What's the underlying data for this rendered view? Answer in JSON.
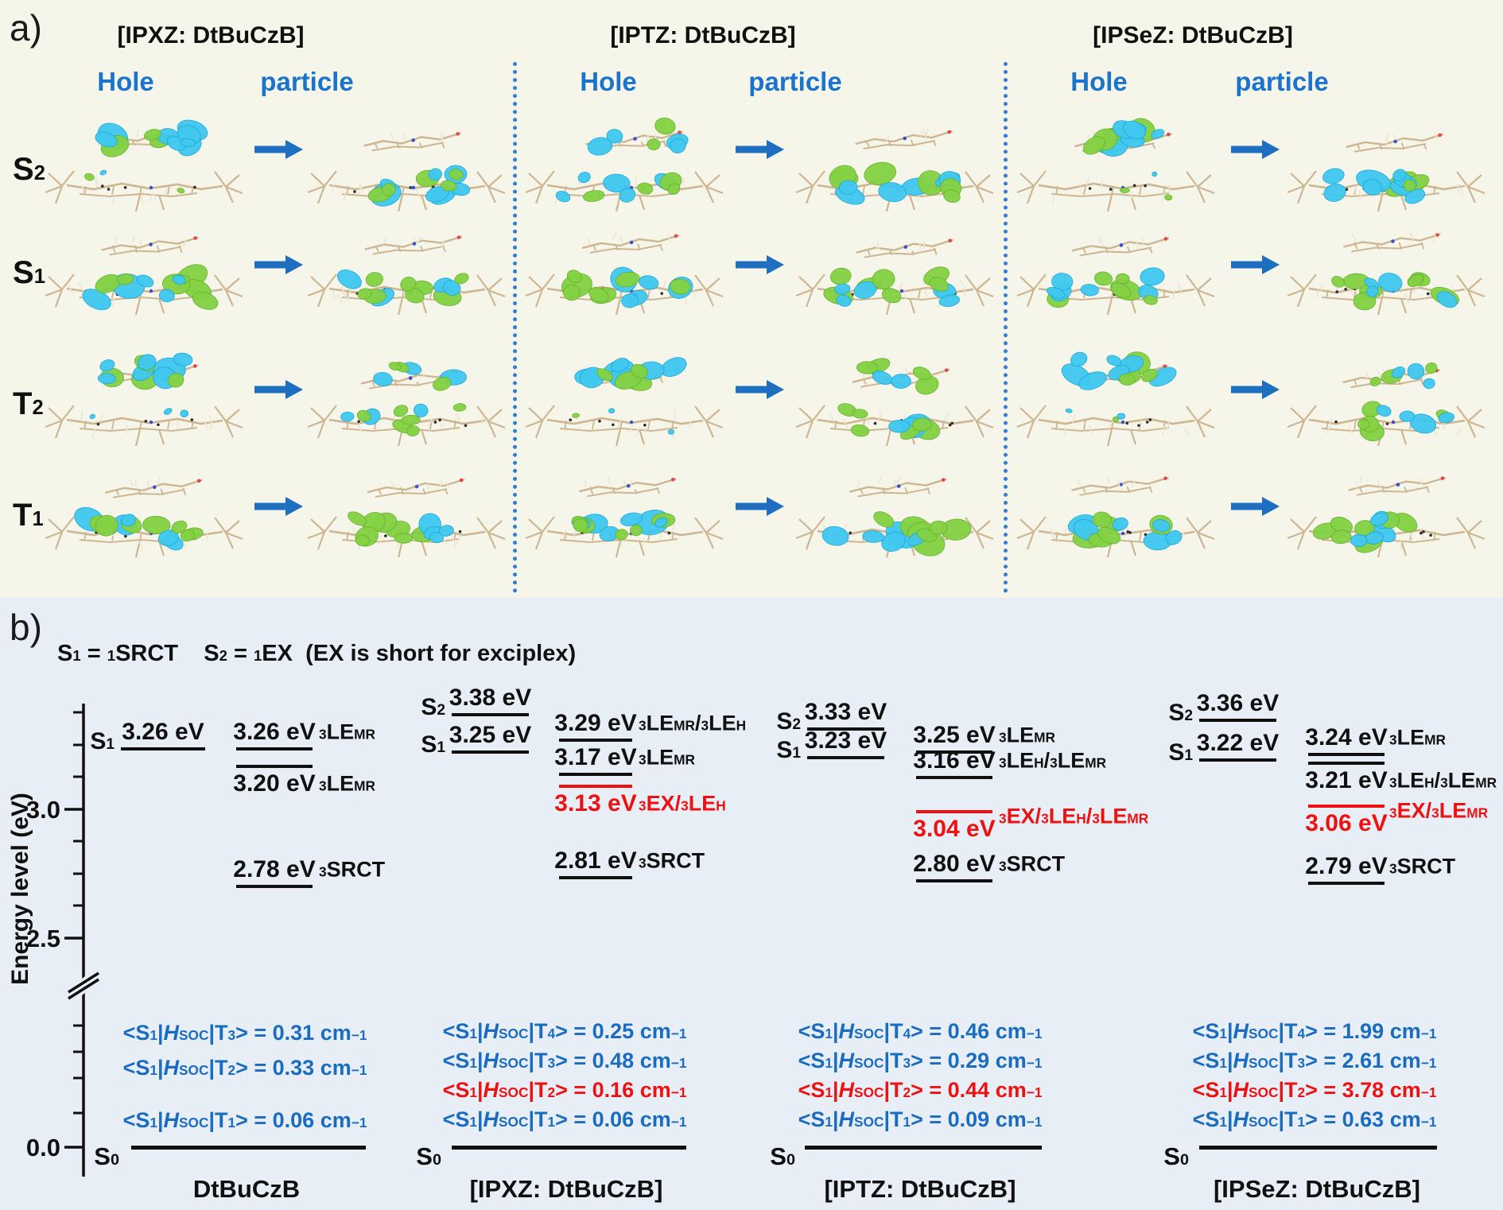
{
  "panel_a": {
    "label": "a)",
    "column_labels": {
      "hole": "Hole",
      "particle": "particle"
    },
    "groups": [
      {
        "title": "[IPXZ: DtBuCzB]"
      },
      {
        "title": "[IPTZ: DtBuCzB]"
      },
      {
        "title": "[IPSeZ: DtBuCzB]"
      }
    ],
    "rows": [
      {
        "id": "s2",
        "label": "S_2_"
      },
      {
        "id": "s1",
        "label": "S_1_"
      },
      {
        "id": "t2",
        "label": "T_2_"
      },
      {
        "id": "t1",
        "label": "T_1_"
      }
    ]
  },
  "panel_b": {
    "label": "b)",
    "header": "S_1_ = ^1^SRCT    S_2_ = ^1^EX  (EX is short for exciplex)",
    "axis": {
      "title": "Energy level (eV)",
      "major_ticks": [
        {
          "label": "3.0",
          "energy": 3.0
        },
        {
          "label": "2.5",
          "energy": 2.5
        },
        {
          "label": "0.0",
          "energy": 0.0
        }
      ],
      "has_break": true
    },
    "columns": [
      {
        "name": "DtBuCzB",
        "singlets": [
          {
            "state": "S_1_",
            "energy_ev": 3.26,
            "text": "3.26 eV"
          }
        ],
        "triplets": [
          {
            "energy_ev": 3.26,
            "text": "3.26 eV",
            "label": "^3^LE_MR_",
            "value_pos": "above",
            "color": "black"
          },
          {
            "energy_ev": 3.2,
            "text": "3.20 eV",
            "label": "^3^LE_MR_",
            "value_pos": "below",
            "color": "black"
          },
          {
            "energy_ev": 2.78,
            "text": "2.78 eV",
            "label": "^3^SRCT",
            "value_pos": "above",
            "color": "black"
          }
        ],
        "soc": [
          {
            "text": "<S_1_|*H*_SOC_|T_3_> = 0.31 cm^−1^",
            "color": "blue"
          },
          {
            "text": "<S_1_|*H*_SOC_|T_2_> = 0.33 cm^−1^",
            "color": "blue"
          },
          {
            "text": "<S_1_|*H*_SOC_|T_1_> = 0.06 cm^−1^",
            "color": "blue"
          }
        ],
        "ground": "S_0_"
      },
      {
        "name": "[IPXZ: DtBuCzB]",
        "singlets": [
          {
            "state": "S_2_",
            "energy_ev": 3.38,
            "text": "3.38 eV"
          },
          {
            "state": "S_1_",
            "energy_ev": 3.25,
            "text": "3.25 eV"
          }
        ],
        "triplets": [
          {
            "energy_ev": 3.29,
            "text": "3.29 eV",
            "label": "^3^LE_MR_/^3^LE_H_",
            "value_pos": "above",
            "color": "black"
          },
          {
            "energy_ev": 3.17,
            "text": "3.17 eV",
            "label": "^3^LE_MR_",
            "value_pos": "above",
            "color": "black"
          },
          {
            "energy_ev": 3.13,
            "text": "3.13 eV",
            "label": "^3^EX/^3^LE_H_",
            "value_pos": "below",
            "color": "red",
            "label_align": "text"
          },
          {
            "energy_ev": 2.81,
            "text": "2.81 eV",
            "label": "^3^SRCT",
            "value_pos": "above",
            "color": "black"
          }
        ],
        "soc": [
          {
            "text": "<S_1_|*H*_SOC_|T_4_> = 0.25 cm^−1^",
            "color": "blue"
          },
          {
            "text": "<S_1_|*H*_SOC_|T_3_> = 0.48 cm^−1^",
            "color": "blue"
          },
          {
            "text": "<S_1_|*H*_SOC_|T_2_> = 0.16 cm^−1^",
            "color": "red"
          },
          {
            "text": "<S_1_|*H*_SOC_|T_1_> = 0.06 cm^−1^",
            "color": "blue"
          }
        ],
        "ground": "S_0_"
      },
      {
        "name": "[IPTZ: DtBuCzB]",
        "singlets": [
          {
            "state": "S_2_",
            "energy_ev": 3.33,
            "text": "3.33 eV"
          },
          {
            "state": "S_1_",
            "energy_ev": 3.23,
            "text": "3.23 eV"
          }
        ],
        "triplets": [
          {
            "energy_ev": 3.25,
            "text": "3.25 eV",
            "label": "^3^LE_MR_",
            "value_pos": "above",
            "color": "black"
          },
          {
            "energy_ev": 3.16,
            "text": "3.16 eV",
            "label": "^3^LE_H_/^3^LE_MR_",
            "value_pos": "above",
            "color": "black"
          },
          {
            "energy_ev": 3.04,
            "text": "3.04 eV",
            "label": "^3^EX/^3^LE_H_/^3^LE_MR_",
            "value_pos": "below",
            "color": "red",
            "label_align": "line"
          },
          {
            "energy_ev": 2.8,
            "text": "2.80 eV",
            "label": "^3^SRCT",
            "value_pos": "above",
            "color": "black"
          }
        ],
        "soc": [
          {
            "text": "<S_1_|*H*_SOC_|T_4_> = 0.46 cm^−1^",
            "color": "blue"
          },
          {
            "text": "<S_1_|*H*_SOC_|T_3_> = 0.29 cm^−1^",
            "color": "blue"
          },
          {
            "text": "<S_1_|*H*_SOC_|T_2_> = 0.44 cm^−1^",
            "color": "red"
          },
          {
            "text": "<S_1_|*H*_SOC_|T_1_> = 0.09 cm^−1^",
            "color": "blue"
          }
        ],
        "ground": "S_0_"
      },
      {
        "name": "[IPSeZ: DtBuCzB]",
        "singlets": [
          {
            "state": "S_2_",
            "energy_ev": 3.36,
            "text": "3.36 eV"
          },
          {
            "state": "S_1_",
            "energy_ev": 3.22,
            "text": "3.22 eV"
          }
        ],
        "triplets": [
          {
            "energy_ev": 3.24,
            "text": "3.24 eV",
            "label": "^3^LE_MR_",
            "value_pos": "above",
            "color": "black"
          },
          {
            "energy_ev": 3.21,
            "text": "3.21 eV",
            "label": "^3^LE_H_/^3^LE_MR_",
            "value_pos": "below",
            "color": "black"
          },
          {
            "energy_ev": 3.06,
            "text": "3.06 eV",
            "label": "^3^EX/^3^LE_MR_",
            "value_pos": "below",
            "color": "red",
            "label_align": "line"
          },
          {
            "energy_ev": 2.79,
            "text": "2.79 eV",
            "label": "^3^SRCT",
            "value_pos": "above",
            "color": "black"
          }
        ],
        "soc": [
          {
            "text": "<S_1_|*H*_SOC_|T_4_> = 1.99 cm^−1^",
            "color": "blue"
          },
          {
            "text": "<S_1_|*H*_SOC_|T_3_> = 2.61 cm^−1^",
            "color": "blue"
          },
          {
            "text": "<S_1_|*H*_SOC_|T_2_> = 3.78 cm^−1^",
            "color": "red"
          },
          {
            "text": "<S_1_|*H*_SOC_|T_1_> = 0.63 cm^−1^",
            "color": "blue"
          }
        ],
        "ground": "S_0_"
      }
    ]
  },
  "colors": {
    "accent_blue": "#1a6cc0",
    "state_red": "#ee1111",
    "hole_particle_blue": "#1b74cc",
    "arrow_blue": "#1e6fc0",
    "lobe_green": "#84d244",
    "lobe_cyan": "#41c8f0",
    "skeleton_tan": "#cdb691",
    "panel_a_bg": "#f6f5ea",
    "panel_b_bg": "#e8eef6"
  }
}
